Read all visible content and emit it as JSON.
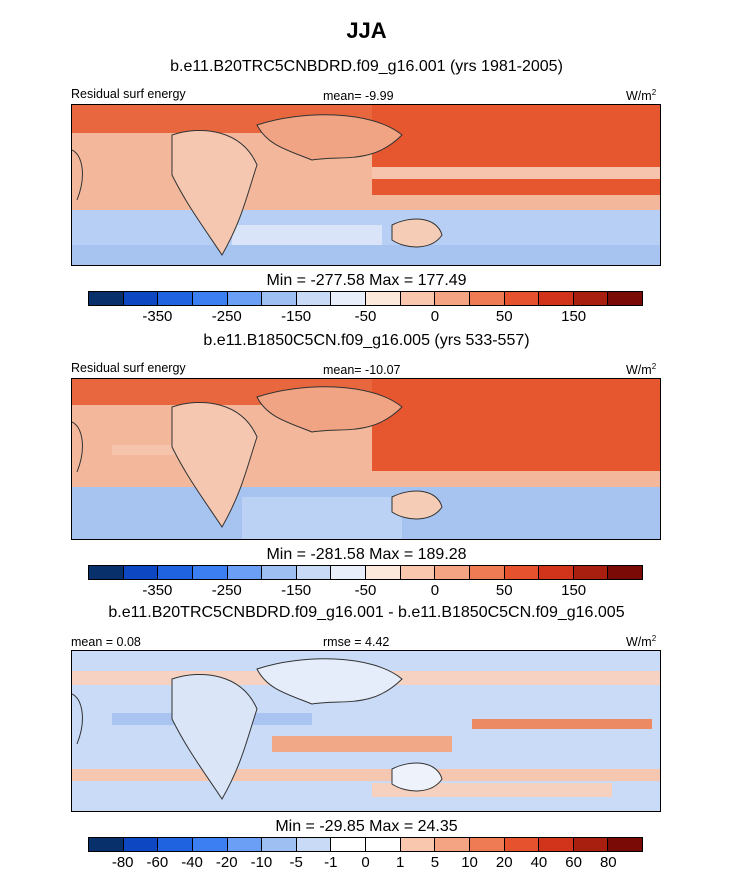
{
  "title": "JJA",
  "panels": [
    {
      "name": "case",
      "title": "b.e11.B20TRC5CNBDRD.f09_g16.001 (yrs 1981-2005)",
      "left_label": "Residual surf energy",
      "mean_label": "mean=  -9.99",
      "units_base": "W/m",
      "units_exp": "2",
      "minmax": "Min = -277.58 Max = 177.49",
      "colors": [
        "#08306b",
        "#0d47c2",
        "#1f63e0",
        "#3b7ff2",
        "#6b9ff5",
        "#9dbff2",
        "#c8daf5",
        "#e8eefa",
        "#fde8dc",
        "#f8c7ad",
        "#f4a482",
        "#ef7b54",
        "#e6522d",
        "#d1341a",
        "#a81f10",
        "#7a0a05"
      ],
      "tick_labels": [
        "-350",
        "-250",
        "-150",
        "-50",
        "0",
        "50",
        "150"
      ]
    },
    {
      "name": "control",
      "title": "b.e11.B1850C5CN.f09_g16.005 (yrs 533-557)",
      "left_label": "Residual surf energy",
      "mean_label": "mean= -10.07",
      "units_base": "W/m",
      "units_exp": "2",
      "minmax": "Min = -281.58 Max = 189.28",
      "colors": [
        "#08306b",
        "#0d47c2",
        "#1f63e0",
        "#3b7ff2",
        "#6b9ff5",
        "#9dbff2",
        "#c8daf5",
        "#e8eefa",
        "#fde8dc",
        "#f8c7ad",
        "#f4a482",
        "#ef7b54",
        "#e6522d",
        "#d1341a",
        "#a81f10",
        "#7a0a05"
      ],
      "tick_labels": [
        "-350",
        "-250",
        "-150",
        "-50",
        "0",
        "50",
        "150"
      ]
    },
    {
      "name": "difference",
      "title": "b.e11.B20TRC5CNBDRD.f09_g16.001 - b.e11.B1850C5CN.f09_g16.005",
      "left_label": "mean =   0.08",
      "mean_label": "rmse =   4.42",
      "units_base": "W/m",
      "units_exp": "2",
      "minmax": "Min = -29.85 Max =  24.35",
      "colors": [
        "#08306b",
        "#0d47c2",
        "#1f63e0",
        "#3b7ff2",
        "#6b9ff5",
        "#9dbff2",
        "#c8daf5",
        "#ffffff",
        "#ffffff",
        "#f8c7ad",
        "#f4a482",
        "#ef7b54",
        "#e6522d",
        "#d1341a",
        "#a81f10",
        "#7a0a05"
      ],
      "tick_labels": [
        "-80",
        "-60",
        "-40",
        "-20",
        "-10",
        "-5",
        "-1",
        "0",
        "1",
        "5",
        "10",
        "20",
        "40",
        "60",
        "80"
      ]
    }
  ]
}
